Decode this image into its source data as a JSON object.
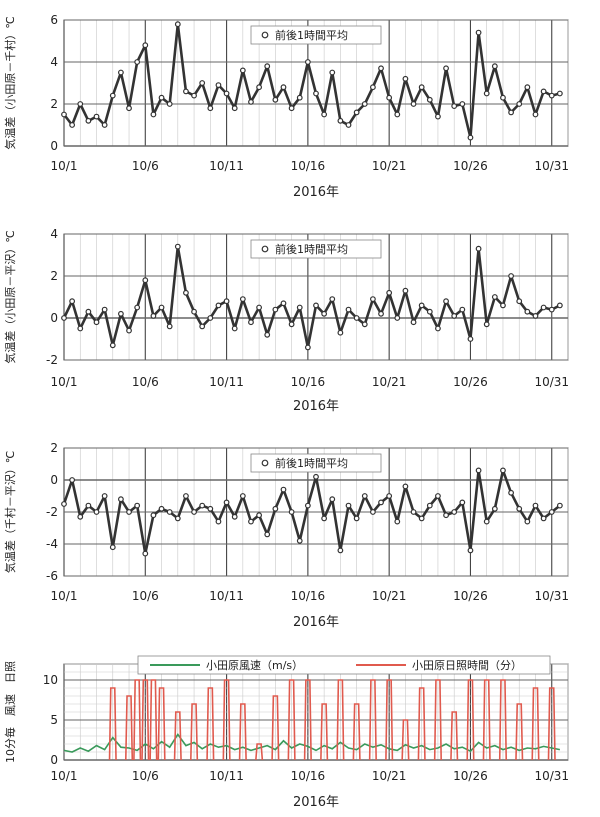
{
  "chart_data": [
    {
      "type": "scatter",
      "ylabel": "気温差（小田原－千村）℃",
      "xlabel": "2016年",
      "legend": "前後1時間平均",
      "legend_position": "top-center",
      "xlim": [
        "2016-10-01",
        "2016-11-01"
      ],
      "ylim": [
        0,
        6
      ],
      "yticks": [
        "0",
        "2",
        "4",
        "6"
      ],
      "xticks": [
        "10/1",
        "10/6",
        "10/11",
        "10/16",
        "10/21",
        "10/26",
        "10/31"
      ],
      "grid": true,
      "series": [
        {
          "name": "前後1時間平均",
          "x": [
            "10/1",
            "10/1.5",
            "10/2",
            "10/2.5",
            "10/3",
            "10/3.5",
            "10/4",
            "10/4.5",
            "10/5",
            "10/5.5",
            "10/6",
            "10/6.5",
            "10/7",
            "10/7.5",
            "10/8",
            "10/8.5",
            "10/9",
            "10/9.5",
            "10/10",
            "10/10.5",
            "10/11",
            "10/11.5",
            "10/12",
            "10/12.5",
            "10/13",
            "10/13.5",
            "10/14",
            "10/14.5",
            "10/15",
            "10/15.5",
            "10/16",
            "10/16.5",
            "10/17",
            "10/17.5",
            "10/18",
            "10/18.5",
            "10/19",
            "10/19.5",
            "10/20",
            "10/20.5",
            "10/21",
            "10/21.5",
            "10/22",
            "10/22.5",
            "10/23",
            "10/23.5",
            "10/24",
            "10/24.5",
            "10/25",
            "10/25.5",
            "10/26",
            "10/26.5",
            "10/27",
            "10/27.5",
            "10/28",
            "10/28.5",
            "10/29",
            "10/29.5",
            "10/30",
            "10/30.5",
            "10/31",
            "10/31.5"
          ],
          "y": [
            1.5,
            1.0,
            2.0,
            1.2,
            1.4,
            1.0,
            2.4,
            3.5,
            1.8,
            4.0,
            4.8,
            1.5,
            2.3,
            2.0,
            5.8,
            2.6,
            2.4,
            3.0,
            1.8,
            2.9,
            2.5,
            1.8,
            3.6,
            2.1,
            2.8,
            3.8,
            2.2,
            2.8,
            1.8,
            2.3,
            4.0,
            2.5,
            1.5,
            3.5,
            1.2,
            1.0,
            1.6,
            2.0,
            2.8,
            3.7,
            2.3,
            1.5,
            3.2,
            2.0,
            2.8,
            2.2,
            1.4,
            3.7,
            1.9,
            2.0,
            0.4,
            5.4,
            2.5,
            3.8,
            2.3,
            1.6,
            2.0,
            2.8,
            1.5,
            2.6,
            2.4,
            2.5
          ]
        }
      ]
    },
    {
      "type": "scatter",
      "ylabel": "気温差（小田原－平沢）℃",
      "xlabel": "2016年",
      "legend": "前後1時間平均",
      "legend_position": "top-center",
      "xlim": [
        "2016-10-01",
        "2016-11-01"
      ],
      "ylim": [
        -2,
        4
      ],
      "yticks": [
        "-2",
        "0",
        "2",
        "4"
      ],
      "xticks": [
        "10/1",
        "10/6",
        "10/11",
        "10/16",
        "10/21",
        "10/26",
        "10/31"
      ],
      "grid": true,
      "series": [
        {
          "name": "前後1時間平均",
          "x": [
            "10/1",
            "10/1.5",
            "10/2",
            "10/2.5",
            "10/3",
            "10/3.5",
            "10/4",
            "10/4.5",
            "10/5",
            "10/5.5",
            "10/6",
            "10/6.5",
            "10/7",
            "10/7.5",
            "10/8",
            "10/8.5",
            "10/9",
            "10/9.5",
            "10/10",
            "10/10.5",
            "10/11",
            "10/11.5",
            "10/12",
            "10/12.5",
            "10/13",
            "10/13.5",
            "10/14",
            "10/14.5",
            "10/15",
            "10/15.5",
            "10/16",
            "10/16.5",
            "10/17",
            "10/17.5",
            "10/18",
            "10/18.5",
            "10/19",
            "10/19.5",
            "10/20",
            "10/20.5",
            "10/21",
            "10/21.5",
            "10/22",
            "10/22.5",
            "10/23",
            "10/23.5",
            "10/24",
            "10/24.5",
            "10/25",
            "10/25.5",
            "10/26",
            "10/26.5",
            "10/27",
            "10/27.5",
            "10/28",
            "10/28.5",
            "10/29",
            "10/29.5",
            "10/30",
            "10/30.5",
            "10/31",
            "10/31.5"
          ],
          "y": [
            0.0,
            0.8,
            -0.5,
            0.3,
            -0.2,
            0.4,
            -1.3,
            0.2,
            -0.6,
            0.5,
            1.8,
            0.1,
            0.5,
            -0.4,
            3.4,
            1.2,
            0.3,
            -0.4,
            0.0,
            0.6,
            0.8,
            -0.5,
            0.9,
            -0.2,
            0.5,
            -0.8,
            0.4,
            0.7,
            -0.3,
            0.5,
            -1.4,
            0.6,
            0.2,
            0.9,
            -0.7,
            0.4,
            0.0,
            -0.3,
            0.9,
            0.2,
            1.2,
            0.0,
            1.3,
            -0.2,
            0.6,
            0.3,
            -0.5,
            0.8,
            0.1,
            0.4,
            -1.0,
            3.3,
            -0.3,
            1.0,
            0.6,
            2.0,
            0.8,
            0.3,
            0.1,
            0.5,
            0.4,
            0.6
          ]
        }
      ]
    },
    {
      "type": "scatter",
      "ylabel": "気温差（千村－平沢）℃",
      "xlabel": "2016年",
      "legend": "前後1時間平均",
      "legend_position": "top-center",
      "xlim": [
        "2016-10-01",
        "2016-11-01"
      ],
      "ylim": [
        -6,
        2
      ],
      "yticks": [
        "-6",
        "-4",
        "-2",
        "0",
        "2"
      ],
      "xticks": [
        "10/1",
        "10/6",
        "10/11",
        "10/16",
        "10/21",
        "10/26",
        "10/31"
      ],
      "grid": true,
      "series": [
        {
          "name": "前後1時間平均",
          "x": [
            "10/1",
            "10/1.5",
            "10/2",
            "10/2.5",
            "10/3",
            "10/3.5",
            "10/4",
            "10/4.5",
            "10/5",
            "10/5.5",
            "10/6",
            "10/6.5",
            "10/7",
            "10/7.5",
            "10/8",
            "10/8.5",
            "10/9",
            "10/9.5",
            "10/10",
            "10/10.5",
            "10/11",
            "10/11.5",
            "10/12",
            "10/12.5",
            "10/13",
            "10/13.5",
            "10/14",
            "10/14.5",
            "10/15",
            "10/15.5",
            "10/16",
            "10/16.5",
            "10/17",
            "10/17.5",
            "10/18",
            "10/18.5",
            "10/19",
            "10/19.5",
            "10/20",
            "10/20.5",
            "10/21",
            "10/21.5",
            "10/22",
            "10/22.5",
            "10/23",
            "10/23.5",
            "10/24",
            "10/24.5",
            "10/25",
            "10/25.5",
            "10/26",
            "10/26.5",
            "10/27",
            "10/27.5",
            "10/28",
            "10/28.5",
            "10/29",
            "10/29.5",
            "10/30",
            "10/30.5",
            "10/31",
            "10/31.5"
          ],
          "y": [
            -1.5,
            0.0,
            -2.3,
            -1.6,
            -2.0,
            -1.0,
            -4.2,
            -1.2,
            -2.0,
            -1.6,
            -4.6,
            -2.2,
            -1.8,
            -2.0,
            -2.4,
            -1.0,
            -2.0,
            -1.6,
            -1.8,
            -2.6,
            -1.4,
            -2.3,
            -1.0,
            -2.6,
            -2.2,
            -3.4,
            -1.8,
            -0.6,
            -2.0,
            -3.8,
            -1.6,
            0.2,
            -2.4,
            -1.2,
            -4.4,
            -1.6,
            -2.4,
            -1.0,
            -2.0,
            -1.4,
            -1.0,
            -2.6,
            -0.4,
            -2.0,
            -2.4,
            -1.6,
            -1.0,
            -2.2,
            -2.0,
            -1.4,
            -4.4,
            0.6,
            -2.6,
            -1.8,
            0.6,
            -0.8,
            -1.8,
            -2.6,
            -1.6,
            -2.4,
            -2.0,
            -1.6
          ]
        }
      ]
    },
    {
      "type": "line",
      "ylabel": "10分毎　風速　日照",
      "xlabel": "2016年",
      "legend_position": "top",
      "xlim": [
        "2016-10-01",
        "2016-11-01"
      ],
      "ylim": [
        0,
        12
      ],
      "yticks": [
        "0",
        "5",
        "10"
      ],
      "xticks": [
        "10/1",
        "10/6",
        "10/11",
        "10/16",
        "10/21",
        "10/26",
        "10/31"
      ],
      "grid": true,
      "series": [
        {
          "name": "小田原風速（m/s）",
          "x": [
            "10/1",
            "10/1.5",
            "10/2",
            "10/2.5",
            "10/3",
            "10/3.5",
            "10/4",
            "10/4.5",
            "10/5",
            "10/5.5",
            "10/6",
            "10/6.5",
            "10/7",
            "10/7.5",
            "10/8",
            "10/8.5",
            "10/9",
            "10/9.5",
            "10/10",
            "10/10.5",
            "10/11",
            "10/11.5",
            "10/12",
            "10/12.5",
            "10/13",
            "10/13.5",
            "10/14",
            "10/14.5",
            "10/15",
            "10/15.5",
            "10/16",
            "10/16.5",
            "10/17",
            "10/17.5",
            "10/18",
            "10/18.5",
            "10/19",
            "10/19.5",
            "10/20",
            "10/20.5",
            "10/21",
            "10/21.5",
            "10/22",
            "10/22.5",
            "10/23",
            "10/23.5",
            "10/24",
            "10/24.5",
            "10/25",
            "10/25.5",
            "10/26",
            "10/26.5",
            "10/27",
            "10/27.5",
            "10/28",
            "10/28.5",
            "10/29",
            "10/29.5",
            "10/30",
            "10/30.5",
            "10/31",
            "10/31.5"
          ],
          "y": [
            1.2,
            1.0,
            1.5,
            1.1,
            1.8,
            1.3,
            2.8,
            1.6,
            1.5,
            1.2,
            2.0,
            1.4,
            2.3,
            1.6,
            3.2,
            1.8,
            2.2,
            1.4,
            2.0,
            1.6,
            1.8,
            1.3,
            1.6,
            1.2,
            1.5,
            1.8,
            1.3,
            2.4,
            1.5,
            2.0,
            1.7,
            1.2,
            1.8,
            1.4,
            2.2,
            1.5,
            1.3,
            2.0,
            1.6,
            1.9,
            1.4,
            1.2,
            1.9,
            1.5,
            1.8,
            1.3,
            1.5,
            2.0,
            1.4,
            1.6,
            1.1,
            2.2,
            1.5,
            1.8,
            1.3,
            1.6,
            1.2,
            1.5,
            1.4,
            1.7,
            1.5,
            1.3
          ]
        },
        {
          "name": "小田原日照時間（分）",
          "x": [
            "10/4",
            "10/5",
            "10/5.5",
            "10/6",
            "10/6.5",
            "10/7",
            "10/8",
            "10/9",
            "10/10",
            "10/11",
            "10/12",
            "10/13",
            "10/14",
            "10/15",
            "10/16",
            "10/17",
            "10/18",
            "10/19",
            "10/20",
            "10/21",
            "10/22",
            "10/23",
            "10/24",
            "10/25",
            "10/26",
            "10/27",
            "10/28",
            "10/29",
            "10/30",
            "10/31"
          ],
          "y": [
            9,
            8,
            10,
            10,
            10,
            9,
            6,
            7,
            9,
            10,
            7,
            2,
            8,
            10,
            10,
            7,
            10,
            7,
            10,
            10,
            5,
            9,
            10,
            6,
            10,
            10,
            10,
            7,
            9,
            9
          ]
        }
      ]
    }
  ]
}
